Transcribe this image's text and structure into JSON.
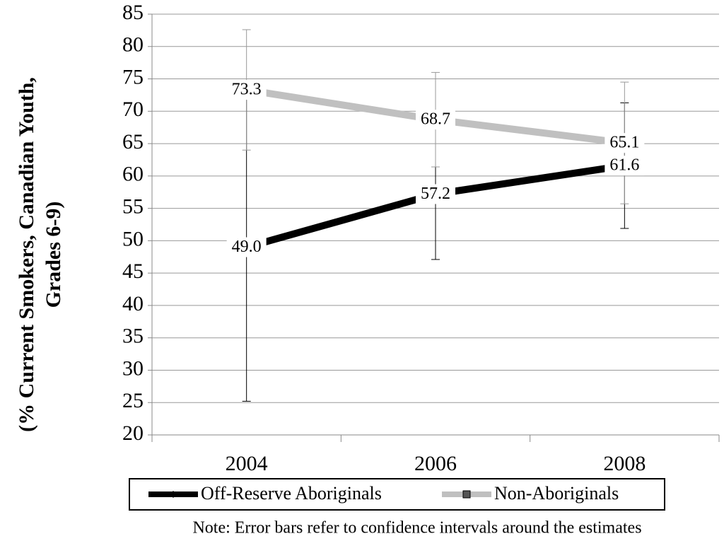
{
  "chart_data": {
    "type": "line",
    "ylabel": [
      "(% Current Smokers, Canadian Youth,",
      "Grades 6-9)"
    ],
    "categories": [
      "2004",
      "2006",
      "2008"
    ],
    "series": [
      {
        "name": "Off-Reserve Aboriginals",
        "color": "#000000",
        "values": [
          49.0,
          57.2,
          61.6
        ],
        "errors": [
          23.8,
          10.1,
          9.7
        ],
        "marker": "diamond"
      },
      {
        "name": "Non-Aboriginals",
        "color": "#c0c0c0",
        "values": [
          73.3,
          68.7,
          65.1
        ],
        "errors": [
          9.3,
          7.3,
          9.4
        ],
        "marker": "square"
      }
    ],
    "ylim": [
      20,
      85
    ],
    "yticks": [
      20,
      25,
      30,
      35,
      40,
      45,
      50,
      55,
      60,
      65,
      70,
      75,
      80,
      85
    ],
    "grid": true,
    "legend": "bottom",
    "note": "Note: Error bars refer to confidence intervals around the estimates"
  }
}
